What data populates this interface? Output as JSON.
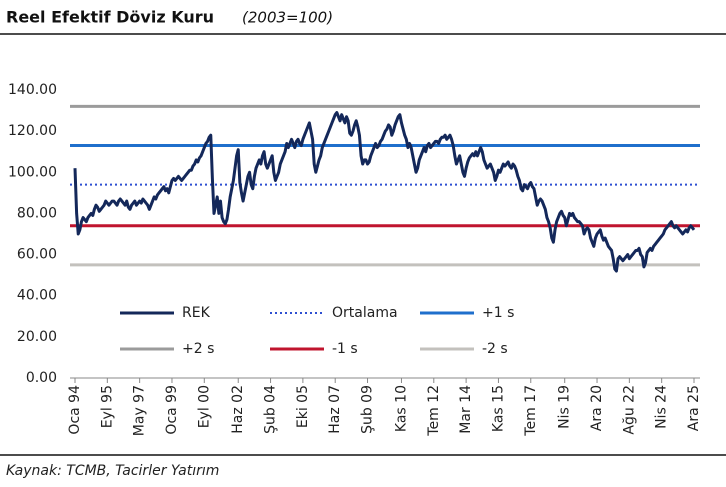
{
  "chart_data": {
    "type": "line",
    "title": "Reel Efektif Döviz Kuru",
    "title_note": "(2003=100)",
    "source": "Kaynak: TCMB, Tacirler Yatırım",
    "categories": [
      "Oca 94",
      null,
      null,
      null,
      null,
      null,
      null,
      null,
      null,
      null,
      null,
      null,
      null,
      null,
      null,
      null,
      null,
      null,
      null,
      null,
      "Eyl 95",
      null,
      null,
      null,
      null,
      null,
      null,
      null,
      null,
      null,
      null,
      null,
      null,
      null,
      null,
      null,
      null,
      null,
      null,
      null,
      "May 97",
      null,
      null,
      null,
      null,
      null,
      null,
      null,
      null,
      null,
      null,
      null,
      null,
      null,
      null,
      null,
      null,
      null,
      null,
      null,
      "Oca 99",
      null,
      null,
      null,
      null,
      null,
      null,
      null,
      null,
      null,
      null,
      null,
      null,
      null,
      null,
      null,
      null,
      null,
      null,
      null,
      "Eyl 00",
      null,
      null,
      null,
      null,
      null,
      null,
      null,
      null,
      null,
      null,
      null,
      null,
      null,
      null,
      null,
      null,
      null,
      null,
      null,
      null,
      "Haz 02",
      null,
      null,
      null,
      null,
      null,
      null,
      null,
      null,
      null,
      null,
      null,
      null,
      null,
      null,
      null,
      null,
      null,
      null,
      null,
      "Şub 04",
      null,
      null,
      null,
      null,
      null,
      null,
      null,
      null,
      null,
      null,
      null,
      null,
      null,
      null,
      null,
      null,
      null,
      null,
      null,
      "Eki 05",
      null,
      null,
      null,
      null,
      null,
      null,
      null,
      null,
      null,
      null,
      null,
      null,
      null,
      null,
      null,
      null,
      null,
      null,
      null,
      "Haz 07",
      null,
      null,
      null,
      null,
      null,
      null,
      null,
      null,
      null,
      null,
      null,
      null,
      null,
      null,
      null,
      null,
      null,
      null,
      null,
      "Şub 09",
      null,
      null,
      null,
      null,
      null,
      null,
      null,
      null,
      null,
      null,
      null,
      null,
      null,
      null,
      null,
      null,
      null,
      null,
      null,
      null,
      "Kas 10",
      null,
      null,
      null,
      null,
      null,
      null,
      null,
      null,
      null,
      null,
      null,
      null,
      null,
      null,
      null,
      null,
      null,
      null,
      null,
      "Tem 12",
      null,
      null,
      null,
      null,
      null,
      null,
      null,
      null,
      null,
      null,
      null,
      null,
      null,
      null,
      null,
      null,
      null,
      null,
      null,
      "Mar 14",
      null,
      null,
      null,
      null,
      null,
      null,
      null,
      null,
      null,
      null,
      null,
      null,
      null,
      null,
      null,
      null,
      null,
      null,
      null,
      "Kas 15",
      null,
      null,
      null,
      null,
      null,
      null,
      null,
      null,
      null,
      null,
      null,
      null,
      null,
      null,
      null,
      null,
      null,
      null,
      null,
      "Tem 17",
      null,
      null,
      null,
      null,
      null,
      null,
      null,
      null,
      null,
      null,
      null,
      null,
      null,
      null,
      null,
      null,
      null,
      null,
      null,
      null,
      "Nis 19",
      null,
      null,
      null,
      null,
      null,
      null,
      null,
      null,
      null,
      null,
      null,
      null,
      null,
      null,
      null,
      null,
      null,
      null,
      null,
      "Ara 20",
      null,
      null,
      null,
      null,
      null,
      null,
      null,
      null,
      null,
      null,
      null,
      null,
      null,
      null,
      null,
      null,
      null,
      null,
      null,
      "Ağu 22",
      null,
      null,
      null,
      null,
      null,
      null,
      null,
      null,
      null,
      null,
      null,
      null,
      null,
      null,
      null,
      null,
      null,
      null,
      null,
      "Nis 24",
      null,
      null,
      null,
      null,
      null,
      null,
      null,
      null,
      null,
      null,
      null,
      null,
      null,
      null,
      null,
      null,
      null,
      null,
      null,
      "Ara 25"
    ],
    "series": [
      {
        "name": "REK",
        "color": "#14285a",
        "values": [
          102,
          80,
          70,
          72,
          76,
          78,
          77,
          76,
          78,
          79,
          80,
          79,
          82,
          84,
          83,
          81,
          82,
          83,
          84,
          86,
          85,
          84,
          85,
          86,
          86,
          85,
          84,
          86,
          87,
          86,
          85,
          84,
          86,
          83,
          82,
          84,
          85,
          86,
          84,
          85,
          86,
          85,
          87,
          86,
          85,
          84,
          82,
          84,
          86,
          88,
          87,
          89,
          90,
          91,
          92,
          93,
          91,
          92,
          90,
          93,
          96,
          97,
          96,
          97,
          98,
          97,
          96,
          97,
          98,
          99,
          100,
          101,
          101,
          103,
          104,
          106,
          105,
          107,
          108,
          110,
          112,
          114,
          115,
          117,
          118,
          97,
          80,
          84,
          88,
          80,
          86,
          78,
          76,
          75,
          77,
          82,
          88,
          92,
          96,
          102,
          108,
          111,
          95,
          90,
          86,
          90,
          94,
          98,
          100,
          94,
          92,
          98,
          102,
          104,
          106,
          104,
          108,
          110,
          104,
          102,
          104,
          106,
          108,
          100,
          96,
          98,
          100,
          104,
          106,
          108,
          110,
          114,
          112,
          114,
          116,
          114,
          112,
          115,
          116,
          114,
          113,
          116,
          118,
          120,
          122,
          124,
          120,
          116,
          104,
          100,
          103,
          106,
          108,
          112,
          114,
          116,
          118,
          120,
          122,
          124,
          126,
          128,
          129,
          127,
          125,
          128,
          126,
          124,
          127,
          125,
          119,
          118,
          120,
          123,
          125,
          122,
          118,
          108,
          104,
          106,
          106,
          104,
          105,
          108,
          110,
          112,
          114,
          112,
          113,
          115,
          116,
          118,
          120,
          121,
          123,
          122,
          118,
          120,
          123,
          125,
          127,
          128,
          124,
          121,
          118,
          116,
          112,
          114,
          112,
          108,
          104,
          100,
          102,
          106,
          108,
          110,
          112,
          110,
          113,
          114,
          112,
          113,
          114,
          115,
          115,
          114,
          116,
          117,
          117,
          118,
          116,
          117,
          118,
          116,
          113,
          108,
          104,
          106,
          108,
          104,
          100,
          98,
          102,
          105,
          107,
          108,
          109,
          108,
          110,
          108,
          110,
          112,
          110,
          106,
          104,
          102,
          103,
          104,
          102,
          100,
          96,
          98,
          101,
          100,
          102,
          104,
          103,
          104,
          105,
          103,
          102,
          104,
          103,
          101,
          98,
          96,
          92,
          91,
          94,
          93,
          92,
          94,
          95,
          93,
          92,
          88,
          84,
          86,
          87,
          86,
          84,
          82,
          78,
          76,
          73,
          68,
          66,
          72,
          76,
          78,
          80,
          81,
          79,
          78,
          74,
          77,
          80,
          79,
          80,
          78,
          77,
          76,
          76,
          75,
          74,
          70,
          72,
          73,
          72,
          68,
          66,
          64,
          68,
          70,
          71,
          72,
          69,
          67,
          68,
          66,
          64,
          63,
          62,
          58,
          53,
          52,
          58,
          59,
          58,
          57,
          58,
          59,
          60,
          58,
          59,
          60,
          61,
          62,
          62,
          63,
          60,
          59,
          54,
          56,
          61,
          62,
          63,
          62,
          64,
          65,
          66,
          67,
          68,
          69,
          70,
          72,
          73,
          74,
          75,
          76,
          74,
          73,
          74,
          73,
          72,
          71,
          70,
          71,
          72,
          71,
          73,
          74,
          73,
          72
        ]
      }
    ],
    "reference_lines": [
      {
        "name": "Ortalama",
        "value": 94,
        "color": "#2e4fd1",
        "style": "dotted"
      },
      {
        "name": "+1 s",
        "value": 113,
        "color": "#1f6fcc",
        "style": "solid"
      },
      {
        "name": "+2 s",
        "value": 132,
        "color": "#9b9b9b",
        "style": "solid"
      },
      {
        "name": "-1 s",
        "value": 74,
        "color": "#c0142e",
        "style": "solid"
      },
      {
        "name": "-2 s",
        "value": 55,
        "color": "#c3c1bd",
        "style": "solid"
      }
    ],
    "ylim": [
      0,
      150
    ],
    "yticks": [
      {
        "value": 0,
        "label": "0.00"
      },
      {
        "value": 20,
        "label": "20.00"
      },
      {
        "value": 40,
        "label": "40.00"
      },
      {
        "value": 60,
        "label": "60.00"
      },
      {
        "value": 80,
        "label": "80.00"
      },
      {
        "value": 100,
        "label": "100.00"
      },
      {
        "value": 120,
        "label": "120.00"
      },
      {
        "value": 140,
        "label": "140.00"
      }
    ],
    "grid": false
  }
}
